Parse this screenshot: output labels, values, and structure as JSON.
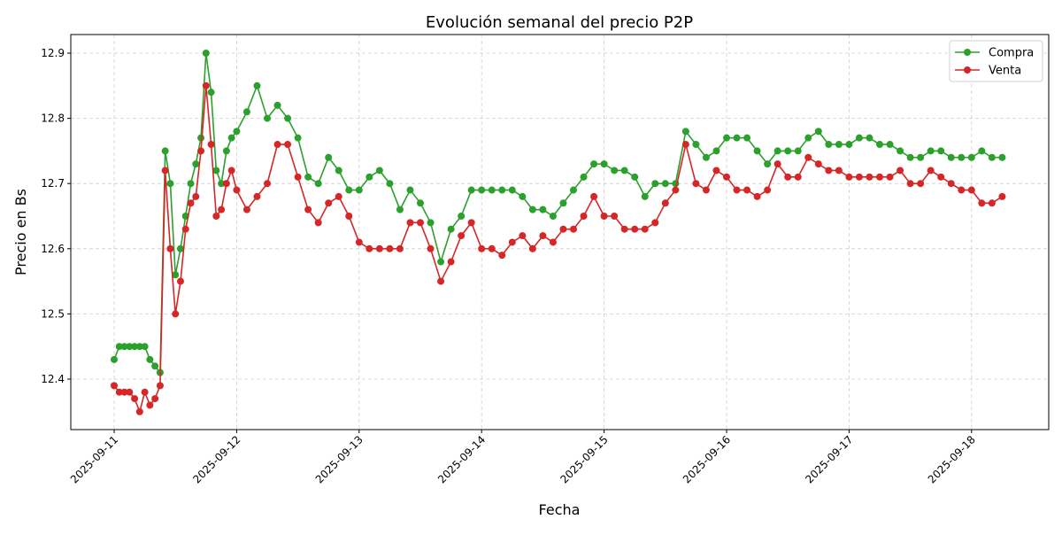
{
  "chart_data": {
    "type": "line",
    "title": "Evolución semanal del precio P2P",
    "xlabel": "Fecha",
    "ylabel": "Precio en Bs",
    "ylim": [
      12.325,
      12.93
    ],
    "xlim": [
      "2025-09-10 08:30",
      "2025-09-18 14:00"
    ],
    "grid": true,
    "legend_placement": "top-right",
    "x_tick_labels": [
      "2025-09-11",
      "2025-09-12",
      "2025-09-13",
      "2025-09-14",
      "2025-09-15",
      "2025-09-16",
      "2025-09-17",
      "2025-09-18"
    ],
    "y_tick_labels": [
      "12.4",
      "12.5",
      "12.6",
      "12.7",
      "12.8",
      "12.9"
    ],
    "x": [
      "2025-09-11 00:00",
      "2025-09-11 01:00",
      "2025-09-11 02:00",
      "2025-09-11 03:00",
      "2025-09-11 04:00",
      "2025-09-11 05:00",
      "2025-09-11 06:00",
      "2025-09-11 07:00",
      "2025-09-11 08:00",
      "2025-09-11 09:00",
      "2025-09-11 10:00",
      "2025-09-11 11:00",
      "2025-09-11 12:00",
      "2025-09-11 13:00",
      "2025-09-11 14:00",
      "2025-09-11 15:00",
      "2025-09-11 16:00",
      "2025-09-11 17:00",
      "2025-09-11 18:00",
      "2025-09-11 19:00",
      "2025-09-11 20:00",
      "2025-09-11 21:00",
      "2025-09-11 22:00",
      "2025-09-11 23:00",
      "2025-09-12 00:00",
      "2025-09-12 02:00",
      "2025-09-12 04:00",
      "2025-09-12 06:00",
      "2025-09-12 08:00",
      "2025-09-12 10:00",
      "2025-09-12 12:00",
      "2025-09-12 14:00",
      "2025-09-12 16:00",
      "2025-09-12 18:00",
      "2025-09-12 20:00",
      "2025-09-12 22:00",
      "2025-09-13 00:00",
      "2025-09-13 02:00",
      "2025-09-13 04:00",
      "2025-09-13 06:00",
      "2025-09-13 08:00",
      "2025-09-13 10:00",
      "2025-09-13 12:00",
      "2025-09-13 14:00",
      "2025-09-13 16:00",
      "2025-09-13 18:00",
      "2025-09-13 20:00",
      "2025-09-13 22:00",
      "2025-09-14 00:00",
      "2025-09-14 02:00",
      "2025-09-14 04:00",
      "2025-09-14 06:00",
      "2025-09-14 08:00",
      "2025-09-14 10:00",
      "2025-09-14 12:00",
      "2025-09-14 14:00",
      "2025-09-14 16:00",
      "2025-09-14 18:00",
      "2025-09-14 20:00",
      "2025-09-14 22:00",
      "2025-09-15 00:00",
      "2025-09-15 02:00",
      "2025-09-15 04:00",
      "2025-09-15 06:00",
      "2025-09-15 08:00",
      "2025-09-15 10:00",
      "2025-09-15 12:00",
      "2025-09-15 14:00",
      "2025-09-15 16:00",
      "2025-09-15 18:00",
      "2025-09-15 20:00",
      "2025-09-15 22:00",
      "2025-09-16 00:00",
      "2025-09-16 02:00",
      "2025-09-16 04:00",
      "2025-09-16 06:00",
      "2025-09-16 08:00",
      "2025-09-16 10:00",
      "2025-09-16 12:00",
      "2025-09-16 14:00",
      "2025-09-16 16:00",
      "2025-09-16 18:00",
      "2025-09-16 20:00",
      "2025-09-16 22:00",
      "2025-09-17 00:00",
      "2025-09-17 02:00",
      "2025-09-17 04:00",
      "2025-09-17 06:00",
      "2025-09-17 08:00",
      "2025-09-17 10:00",
      "2025-09-17 12:00",
      "2025-09-17 14:00",
      "2025-09-17 16:00",
      "2025-09-17 18:00",
      "2025-09-17 20:00",
      "2025-09-17 22:00",
      "2025-09-18 00:00",
      "2025-09-18 02:00",
      "2025-09-18 04:00",
      "2025-09-18 06:00"
    ],
    "series": [
      {
        "name": "Compra",
        "color": "#2ca02c",
        "marker": "circle",
        "values": [
          12.43,
          12.45,
          12.45,
          12.45,
          12.45,
          12.45,
          12.45,
          12.43,
          12.42,
          12.41,
          12.75,
          12.7,
          12.56,
          12.6,
          12.65,
          12.7,
          12.73,
          12.77,
          12.9,
          12.84,
          12.72,
          12.7,
          12.75,
          12.77,
          12.78,
          12.81,
          12.85,
          12.8,
          12.82,
          12.8,
          12.77,
          12.71,
          12.7,
          12.74,
          12.72,
          12.69,
          12.69,
          12.71,
          12.72,
          12.7,
          12.66,
          12.69,
          12.67,
          12.64,
          12.58,
          12.63,
          12.65,
          12.69,
          12.69,
          12.69,
          12.69,
          12.69,
          12.68,
          12.66,
          12.66,
          12.65,
          12.67,
          12.69,
          12.71,
          12.73,
          12.73,
          12.72,
          12.72,
          12.71,
          12.68,
          12.7,
          12.7,
          12.7,
          12.78,
          12.76,
          12.74,
          12.75,
          12.77,
          12.77,
          12.77,
          12.75,
          12.73,
          12.75,
          12.75,
          12.75,
          12.77,
          12.78,
          12.76,
          12.76,
          12.76,
          12.77,
          12.77,
          12.76,
          12.76,
          12.75,
          12.74,
          12.74,
          12.75,
          12.75,
          12.74,
          12.74,
          12.74,
          12.75,
          12.74,
          12.74
        ]
      },
      {
        "name": "Venta",
        "color": "#d62728",
        "marker": "circle",
        "values": [
          12.39,
          12.38,
          12.38,
          12.38,
          12.37,
          12.35,
          12.38,
          12.36,
          12.37,
          12.39,
          12.72,
          12.6,
          12.5,
          12.55,
          12.63,
          12.67,
          12.68,
          12.75,
          12.85,
          12.76,
          12.65,
          12.66,
          12.7,
          12.72,
          12.69,
          12.66,
          12.68,
          12.7,
          12.76,
          12.76,
          12.71,
          12.66,
          12.64,
          12.67,
          12.68,
          12.65,
          12.61,
          12.6,
          12.6,
          12.6,
          12.6,
          12.64,
          12.64,
          12.6,
          12.55,
          12.58,
          12.62,
          12.64,
          12.6,
          12.6,
          12.59,
          12.61,
          12.62,
          12.6,
          12.62,
          12.61,
          12.63,
          12.63,
          12.65,
          12.68,
          12.65,
          12.65,
          12.63,
          12.63,
          12.63,
          12.64,
          12.67,
          12.69,
          12.76,
          12.7,
          12.69,
          12.72,
          12.71,
          12.69,
          12.69,
          12.68,
          12.69,
          12.73,
          12.71,
          12.71,
          12.74,
          12.73,
          12.72,
          12.72,
          12.71,
          12.71,
          12.71,
          12.71,
          12.71,
          12.72,
          12.7,
          12.7,
          12.72,
          12.71,
          12.7,
          12.69,
          12.69,
          12.67,
          12.67,
          12.68
        ]
      }
    ]
  }
}
